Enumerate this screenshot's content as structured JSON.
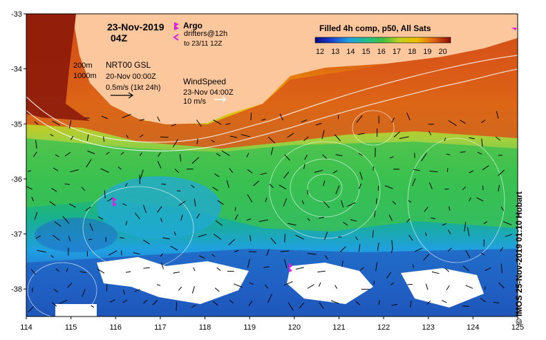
{
  "map": {
    "date": "23-Nov-2019",
    "hour": "04Z",
    "x_ticks": [
      "114",
      "115",
      "116",
      "117",
      "118",
      "119",
      "120",
      "121",
      "122",
      "123",
      "124",
      "125"
    ],
    "y_ticks": [
      "-33",
      "-34",
      "-35",
      "-36",
      "-37",
      "-38"
    ],
    "lon_range": [
      114,
      125
    ],
    "lat_range": [
      -38.5,
      -33
    ]
  },
  "legend": {
    "argo_label": "Argo",
    "drifters_label": "drifters@12h",
    "drifters_sub": "to 23/11 12Z",
    "depth_200": "200m",
    "depth_1000": "1000m",
    "gsl_label": "NRT00 GSL",
    "gsl_date": "20-Nov 00:00Z",
    "speed_scale": "0.5m/s (1kt 24h)",
    "wind_label": "WindSpeed",
    "wind_date": "23-Nov 04:00Z",
    "wind_scale": "10 m/s",
    "colors": {
      "argo": "#e020e0",
      "drifter": "#e020e0",
      "land": "#fcc79c"
    }
  },
  "colorbar": {
    "title": "Filled 4h comp, p50, All Sats",
    "ticks": [
      "12",
      "13",
      "14",
      "15",
      "16",
      "17",
      "18",
      "19",
      "20"
    ]
  },
  "credit": "© IMOS 25-Nov-2019 01:10 Hobart"
}
